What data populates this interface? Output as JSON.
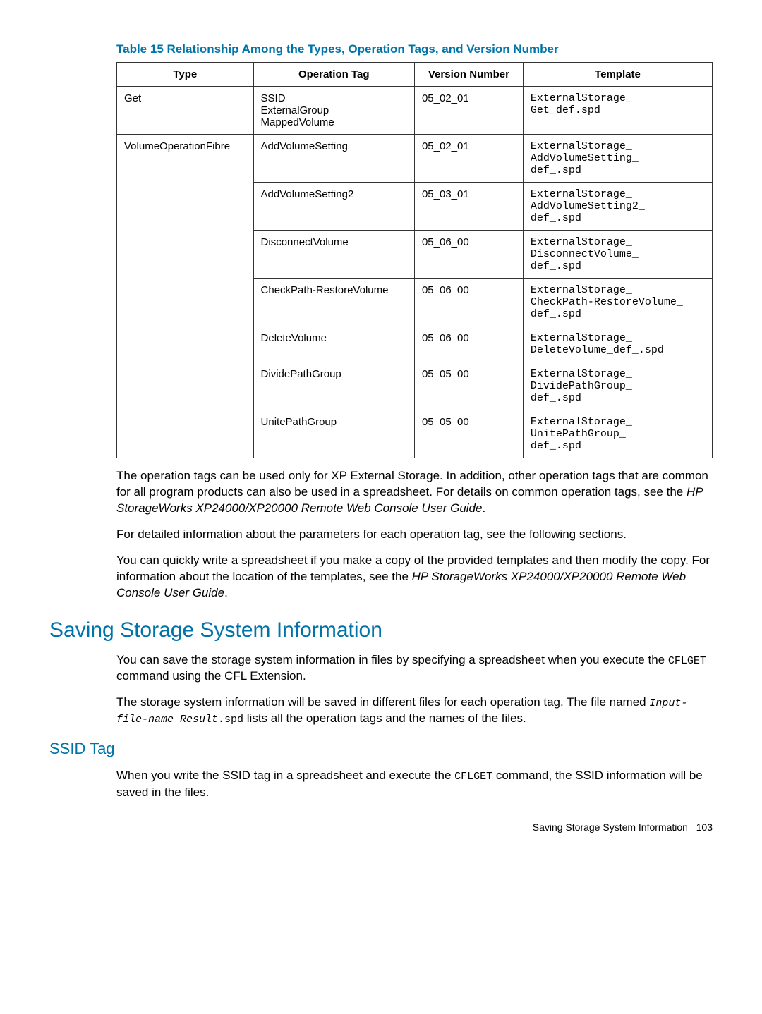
{
  "colors": {
    "accent": "#0073a8",
    "border": "#333333",
    "text": "#000000",
    "background": "#ffffff"
  },
  "table": {
    "caption_prefix": "Table 15",
    "caption": "Relationship Among the Types, Operation Tags, and Version Number",
    "headers": [
      "Type",
      "Operation Tag",
      "Version Number",
      "Template"
    ],
    "rows": [
      {
        "type": "Get",
        "op_line1": "SSID",
        "op_line2": "ExternalGroup",
        "op_line3": "MappedVolume",
        "ver": "05_02_01",
        "tpl_l1": "ExternalStorage_",
        "tpl_l2": "Get_def.spd",
        "tpl_l3": ""
      },
      {
        "type": "VolumeOperationFibre",
        "op_line1": "AddVolumeSetting",
        "op_line2": "",
        "op_line3": "",
        "ver": "05_02_01",
        "tpl_l1": "ExternalStorage_",
        "tpl_l2": "AddVolumeSetting_",
        "tpl_l3": "def_.spd"
      },
      {
        "op_line1": "AddVolumeSetting2",
        "ver": "05_03_01",
        "tpl_l1": "ExternalStorage_",
        "tpl_l2": "AddVolumeSetting2_",
        "tpl_l3": "def_.spd"
      },
      {
        "op_line1": "DisconnectVolume",
        "ver": "05_06_00",
        "tpl_l1": "ExternalStorage_",
        "tpl_l2": "DisconnectVolume_",
        "tpl_l3": "def_.spd"
      },
      {
        "op_line1": "CheckPath-RestoreVolume",
        "ver": "05_06_00",
        "tpl_l1": "ExternalStorage_",
        "tpl_l2": "CheckPath-RestoreVolume_",
        "tpl_l3": "def_.spd"
      },
      {
        "op_line1": "DeleteVolume",
        "ver": "05_06_00",
        "tpl_l1": "ExternalStorage_",
        "tpl_l2": "DeleteVolume_def_.spd",
        "tpl_l3": ""
      },
      {
        "op_line1": "DividePathGroup",
        "ver": "05_05_00",
        "tpl_l1": "ExternalStorage_",
        "tpl_l2": "DividePathGroup_",
        "tpl_l3": "def_.spd"
      },
      {
        "op_line1": "UnitePathGroup",
        "ver": "05_05_00",
        "tpl_l1": "ExternalStorage_",
        "tpl_l2": "UnitePathGroup_",
        "tpl_l3": "def_.spd"
      }
    ]
  },
  "para1a": "The operation tags can be used only for XP External Storage. In addition, other operation tags that are common for all program products can also be used in a spreadsheet. For details on common operation tags, see the ",
  "para1_em": "HP StorageWorks XP24000/XP20000 Remote Web Console User Guide",
  "para1b": ".",
  "para2": "For detailed information about the parameters for each operation tag, see the following sections.",
  "para3a": "You can quickly write a spreadsheet if you make a copy of the provided templates and then modify the copy. For information about the location of the templates, see the ",
  "para3_em": "HP StorageWorks XP24000/XP20000 Remote Web Console User Guide",
  "para3b": ".",
  "h2": "Saving Storage System Information",
  "para4a": "You can save the storage system information in files by specifying a spreadsheet when you execute the ",
  "para4_code": "CFLGET",
  "para4b": " command using the CFL Extension.",
  "para5a": "The storage system information will be saved in different files for each operation tag. The file named ",
  "para5_code": "Input-file-name_Result",
  "para5b": ".spd",
  "para5c": " lists all the operation tags and the names of the files.",
  "h3": "SSID Tag",
  "para6a": "When you write the SSID tag in a spreadsheet and execute the ",
  "para6_code": "CFLGET",
  "para6b": " command, the SSID information will be saved in the files.",
  "footer_text": "Saving Storage System Information",
  "footer_page": "103"
}
